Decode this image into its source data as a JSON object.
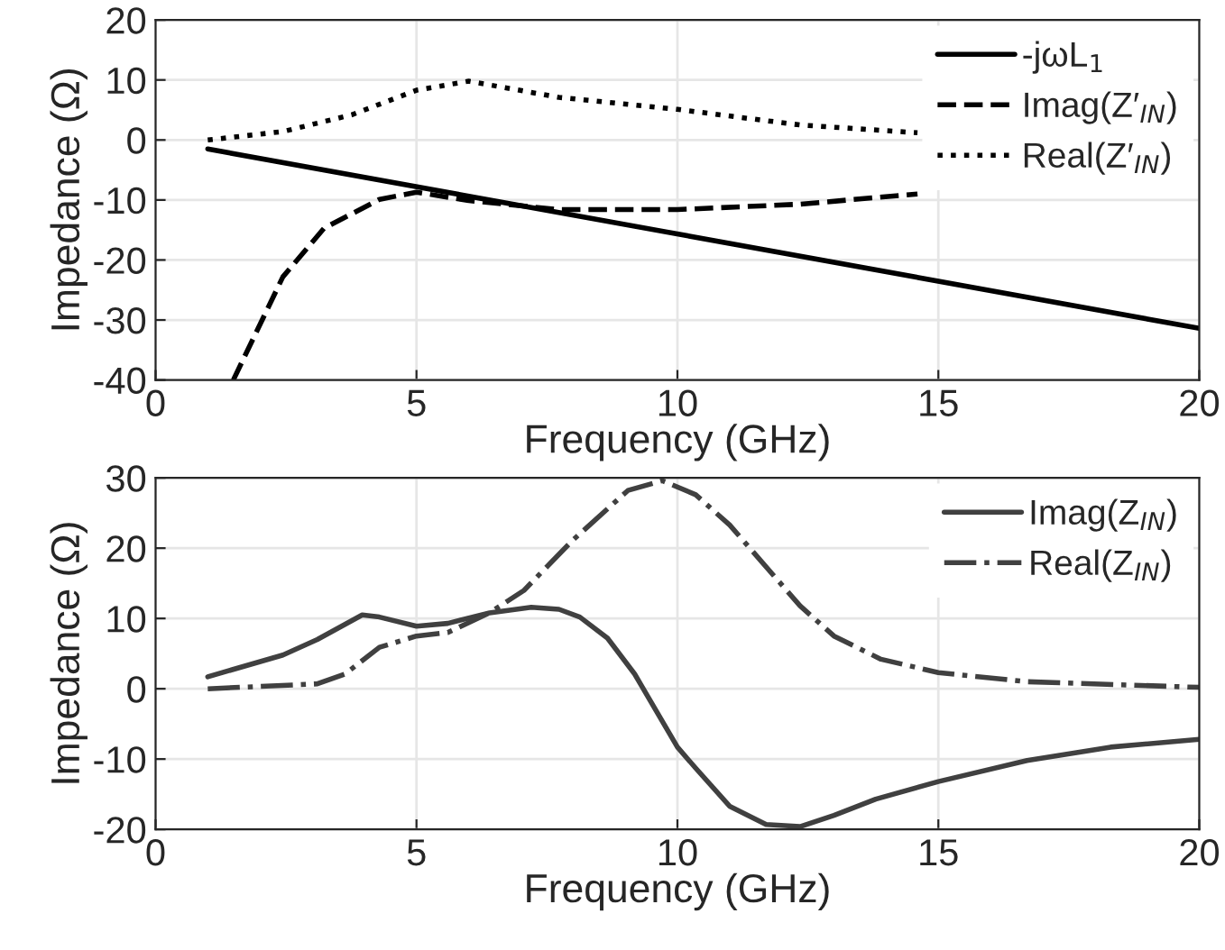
{
  "chart_data": [
    {
      "type": "line",
      "xlabel": "Frequency (GHz)",
      "ylabel": "Impedance (Ω)",
      "xlim": [
        0,
        20
      ],
      "xticks": [
        0,
        5,
        10,
        15,
        20
      ],
      "ylim": [
        -40,
        20
      ],
      "yticks": [
        -40,
        -30,
        -20,
        -10,
        0,
        10,
        20
      ],
      "grid": true,
      "legend": "top right",
      "series": [
        {
          "name": "-jωL$_{1}$",
          "color": "#000000",
          "line_style": "solid",
          "x": [
            1,
            20
          ],
          "values": [
            -1.5,
            -31.4
          ]
        },
        {
          "name": "Imag(Z′$_{IN}$)",
          "color": "#000000",
          "line_style": "dashed",
          "x": [
            1.49,
            2.44,
            3.23,
            4.29,
            5,
            6,
            7.73,
            10,
            12.35,
            14.6
          ],
          "values": [
            -40,
            -22.8,
            -14.7,
            -9.9,
            -8.7,
            -10.1,
            -11.6,
            -11.6,
            -10.7,
            -9.0
          ]
        },
        {
          "name": "Real(Z′$_{IN}$)",
          "color": "#000000",
          "line_style": "dotted",
          "x": [
            1,
            2.44,
            3.76,
            5,
            6,
            7.73,
            10,
            12.35,
            14.6
          ],
          "values": [
            0,
            1.4,
            4.2,
            8.3,
            9.8,
            7.1,
            5.1,
            2.5,
            1.2
          ]
        }
      ]
    },
    {
      "type": "line",
      "xlabel": "Frequency (GHz)",
      "ylabel": "Impedance (Ω)",
      "xlim": [
        0,
        20
      ],
      "xticks": [
        0,
        5,
        10,
        15,
        20
      ],
      "ylim": [
        -20,
        30
      ],
      "yticks": [
        -20,
        -10,
        0,
        10,
        20,
        30
      ],
      "grid": true,
      "legend": "top right",
      "series": [
        {
          "name": "Imag(Z$_{IN}$)",
          "color": "#404040",
          "line_style": "solid",
          "x": [
            1,
            2.44,
            3.1,
            3.96,
            4.29,
            5,
            5.6,
            6.4,
            7.2,
            7.73,
            8.13,
            8.66,
            9.18,
            10,
            10.35,
            11.0,
            11.7,
            12.35,
            13.0,
            13.8,
            15.0,
            16.7,
            18.3,
            20
          ],
          "values": [
            1.7,
            4.8,
            7,
            10.5,
            10.2,
            8.9,
            9.3,
            10.8,
            11.6,
            11.3,
            10.2,
            7.2,
            2.1,
            -8.3,
            -11.3,
            -16.7,
            -19.3,
            -19.6,
            -18,
            -15.7,
            -13.2,
            -10.2,
            -8.3,
            -7.2
          ]
        },
        {
          "name": "Real(Z$_{IN}$)",
          "color": "#404040",
          "line_style": "dashdot",
          "x": [
            1,
            3.1,
            3.63,
            4.29,
            5,
            5.6,
            6.4,
            7.06,
            7.99,
            9.05,
            9.71,
            10.35,
            11.0,
            12.35,
            13.0,
            13.9,
            15,
            16.7,
            20
          ],
          "values": [
            0,
            0.7,
            2.1,
            5.9,
            7.5,
            8.0,
            10.8,
            14,
            21.1,
            28.2,
            29.6,
            27.6,
            23.3,
            11.8,
            7.5,
            4.2,
            2.3,
            1.0,
            0.2
          ]
        }
      ]
    }
  ]
}
